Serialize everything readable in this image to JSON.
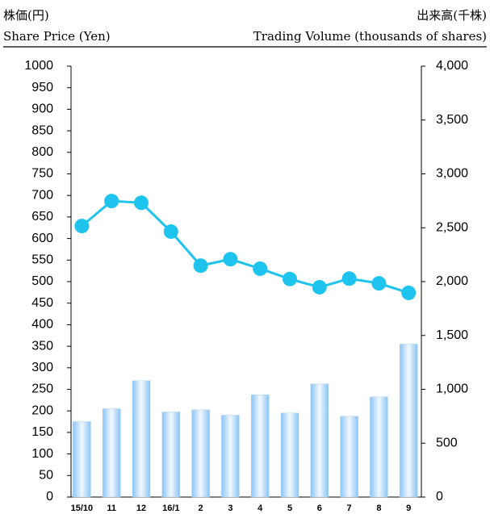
{
  "chart_data": {
    "type": "bar_line",
    "ylabel_ja": "株価(円)",
    "ylabel": "Share Price (Yen)",
    "y2label_ja": "出来高(千株)",
    "y2label": "Trading Volume (thousands of shares)",
    "categories": [
      "15/10",
      "11",
      "12",
      "16/1",
      "2",
      "3",
      "4",
      "5",
      "6",
      "7",
      "8",
      "9"
    ],
    "series": [
      {
        "type": "line",
        "axis": "y",
        "color": "#1ec4ee",
        "values": [
          629,
          687,
          683,
          616,
          537,
          552,
          530,
          506,
          487,
          507,
          496,
          474
        ]
      },
      {
        "type": "bar",
        "axis": "y2",
        "color": "#a8d4f6",
        "values": [
          700,
          820,
          1080,
          790,
          810,
          760,
          950,
          780,
          1050,
          750,
          930,
          1420
        ]
      }
    ],
    "ylim": [
      0,
      1000
    ],
    "yticks": [
      0,
      50,
      100,
      150,
      200,
      250,
      300,
      350,
      400,
      450,
      500,
      550,
      600,
      650,
      700,
      750,
      800,
      850,
      900,
      950,
      1000
    ],
    "y2lim": [
      0,
      4000
    ],
    "y2ticks": [
      0,
      500,
      {
        "value": 1000,
        "label": "1,000"
      },
      {
        "value": 1500,
        "label": "1,500"
      },
      {
        "value": 2000,
        "label": "2,000"
      },
      {
        "value": 2500,
        "label": "2,500"
      },
      {
        "value": 3000,
        "label": "3,000"
      },
      {
        "value": 3500,
        "label": "3,500"
      },
      {
        "value": 4000,
        "label": "4,000"
      }
    ],
    "grid": false
  }
}
